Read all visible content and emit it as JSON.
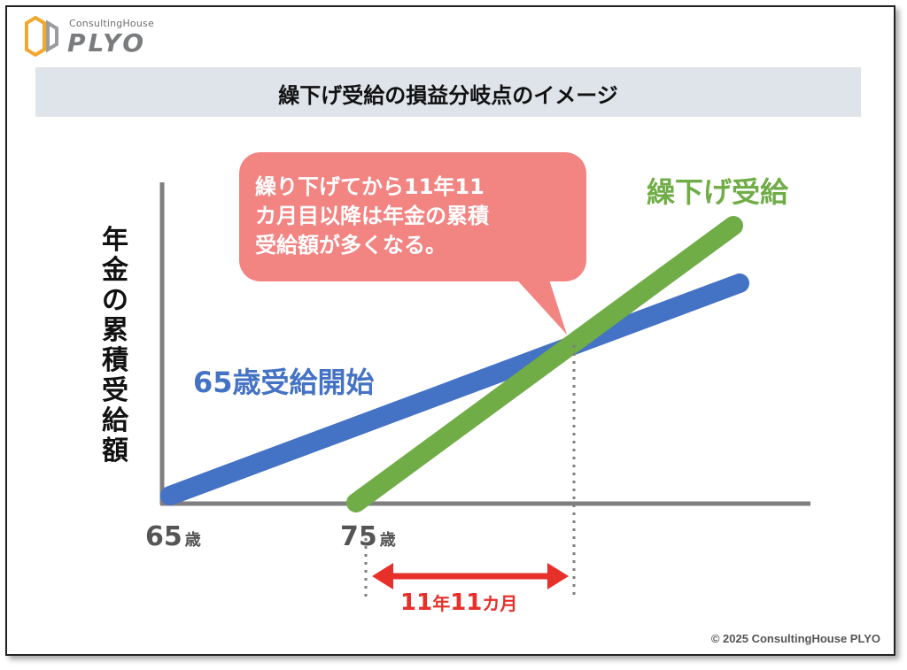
{
  "logo": {
    "sub": "ConsultingHouse",
    "main": "PLYO"
  },
  "title": "繰下げ受給の損益分岐点のイメージ",
  "y_axis_label": "年金の累積受給額",
  "callout": [
    "繰り下げてから11年11",
    "カ月目以降は年金の累積",
    "受給額が多くなる。"
  ],
  "series_labels": {
    "start65": "65歳受給開始",
    "deferred": "繰下げ受給"
  },
  "ticks": {
    "t65_num": "65",
    "t65_unit": "歳",
    "t75_num": "75",
    "t75_unit": "歳"
  },
  "span": {
    "n1": "11",
    "u1": "年",
    "n2": "11",
    "u2": "カ月"
  },
  "copyright": "© 2025 ConsultingHouse PLYO",
  "colors": {
    "start65": "#4472c4",
    "deferred": "#70ad47",
    "callout": "#f28482",
    "span": "#e8302a",
    "banner": "#dfe3ea"
  },
  "chart_data": {
    "type": "line",
    "title": "繰下げ受給の損益分岐点のイメージ",
    "xlabel": "",
    "ylabel": "年金の累積受給額",
    "x_ticks": [
      "65歳",
      "75歳"
    ],
    "series": [
      {
        "name": "65歳受給開始",
        "start_age": 65
      },
      {
        "name": "繰下げ受給",
        "start_age": 75
      }
    ],
    "annotation": "繰り下げてから11年11カ月目以降は年金の累積受給額が多くなる。",
    "break_even_span": "11年11カ月",
    "grid": false
  }
}
